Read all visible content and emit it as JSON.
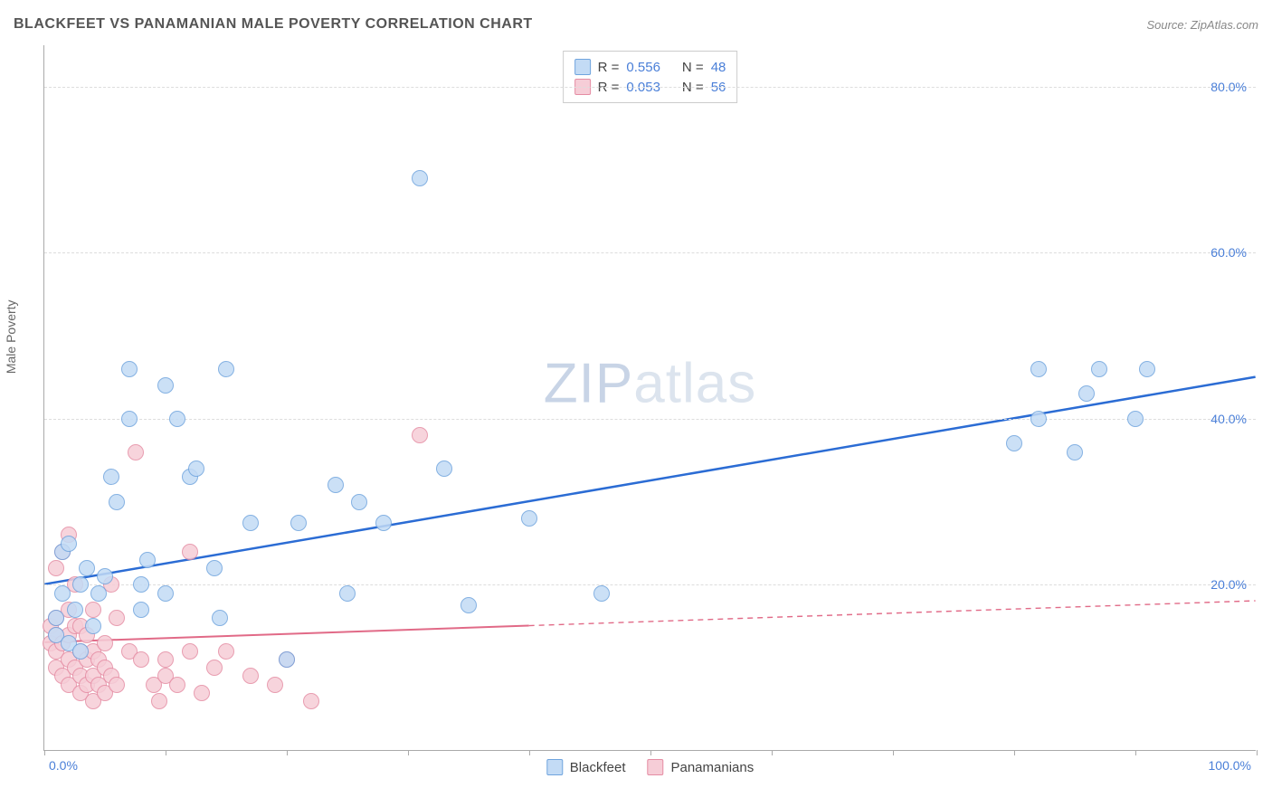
{
  "title": "BLACKFEET VS PANAMANIAN MALE POVERTY CORRELATION CHART",
  "source": "Source: ZipAtlas.com",
  "ylabel": "Male Poverty",
  "watermark_zip": "ZIP",
  "watermark_atlas": "atlas",
  "chart": {
    "type": "scatter",
    "xlim": [
      0,
      100
    ],
    "ylim": [
      0,
      85
    ],
    "yticks": [
      20,
      40,
      60,
      80
    ],
    "ytick_labels": [
      "20.0%",
      "40.0%",
      "60.0%",
      "80.0%"
    ],
    "xticks": [
      0,
      10,
      20,
      30,
      40,
      50,
      60,
      70,
      80,
      90,
      100
    ],
    "xaxis_left": "0.0%",
    "xaxis_right": "100.0%",
    "background_color": "#ffffff",
    "grid_color": "#dddddd",
    "axis_color": "#aaaaaa",
    "marker_radius": 9,
    "marker_stroke_width": 1.2,
    "series": [
      {
        "name": "Blackfeet",
        "fill": "#c3dbf5",
        "stroke": "#6fa4de",
        "trend_color": "#2b6cd4",
        "trend_width": 2.5,
        "trend": {
          "x1": 0,
          "y1": 20,
          "x2": 100,
          "y2": 45,
          "dash_from_x": null
        },
        "R_label": "R =",
        "R": "0.556",
        "N_label": "N =",
        "N": "48",
        "points": [
          [
            1,
            16
          ],
          [
            1,
            14
          ],
          [
            1.5,
            19
          ],
          [
            1.5,
            24
          ],
          [
            2,
            13
          ],
          [
            2,
            25
          ],
          [
            2.5,
            17
          ],
          [
            3,
            12
          ],
          [
            3,
            20
          ],
          [
            3.5,
            22
          ],
          [
            4,
            15
          ],
          [
            4.5,
            19
          ],
          [
            5,
            21
          ],
          [
            5.5,
            33
          ],
          [
            6,
            30
          ],
          [
            7,
            46
          ],
          [
            7,
            40
          ],
          [
            8,
            17
          ],
          [
            8,
            20
          ],
          [
            8.5,
            23
          ],
          [
            10,
            44
          ],
          [
            10,
            19
          ],
          [
            11,
            40
          ],
          [
            12,
            33
          ],
          [
            12.5,
            34
          ],
          [
            14,
            22
          ],
          [
            14.5,
            16
          ],
          [
            15,
            46
          ],
          [
            17,
            27.5
          ],
          [
            20,
            11
          ],
          [
            21,
            27.5
          ],
          [
            24,
            32
          ],
          [
            25,
            19
          ],
          [
            26,
            30
          ],
          [
            28,
            27.5
          ],
          [
            31,
            69
          ],
          [
            33,
            34
          ],
          [
            35,
            17.5
          ],
          [
            40,
            28
          ],
          [
            46,
            19
          ],
          [
            80,
            37
          ],
          [
            82,
            40
          ],
          [
            82,
            46
          ],
          [
            85,
            36
          ],
          [
            86,
            43
          ],
          [
            87,
            46
          ],
          [
            90,
            40
          ],
          [
            91,
            46
          ]
        ]
      },
      {
        "name": "Panamanians",
        "fill": "#f6cdd7",
        "stroke": "#e58ca3",
        "trend_color": "#e16a87",
        "trend_width": 2,
        "trend": {
          "x1": 0,
          "y1": 13,
          "x2": 100,
          "y2": 18,
          "dash_from_x": 40
        },
        "R_label": "R =",
        "R": "0.053",
        "N_label": "N =",
        "N": "56",
        "points": [
          [
            0.5,
            13
          ],
          [
            0.5,
            15
          ],
          [
            1,
            10
          ],
          [
            1,
            12
          ],
          [
            1,
            14
          ],
          [
            1,
            16
          ],
          [
            1,
            22
          ],
          [
            1.5,
            9
          ],
          [
            1.5,
            13
          ],
          [
            1.5,
            24
          ],
          [
            2,
            8
          ],
          [
            2,
            11
          ],
          [
            2,
            14
          ],
          [
            2,
            17
          ],
          [
            2,
            26
          ],
          [
            2.5,
            10
          ],
          [
            2.5,
            15
          ],
          [
            2.5,
            20
          ],
          [
            3,
            7
          ],
          [
            3,
            9
          ],
          [
            3,
            12
          ],
          [
            3,
            15
          ],
          [
            3.5,
            8
          ],
          [
            3.5,
            11
          ],
          [
            3.5,
            14
          ],
          [
            4,
            6
          ],
          [
            4,
            9
          ],
          [
            4,
            12
          ],
          [
            4,
            17
          ],
          [
            4.5,
            8
          ],
          [
            4.5,
            11
          ],
          [
            5,
            7
          ],
          [
            5,
            10
          ],
          [
            5,
            13
          ],
          [
            5.5,
            9
          ],
          [
            5.5,
            20
          ],
          [
            6,
            8
          ],
          [
            6,
            16
          ],
          [
            7,
            12
          ],
          [
            7.5,
            36
          ],
          [
            8,
            11
          ],
          [
            9,
            8
          ],
          [
            9.5,
            6
          ],
          [
            10,
            9
          ],
          [
            10,
            11
          ],
          [
            11,
            8
          ],
          [
            12,
            12
          ],
          [
            12,
            24
          ],
          [
            13,
            7
          ],
          [
            14,
            10
          ],
          [
            15,
            12
          ],
          [
            17,
            9
          ],
          [
            19,
            8
          ],
          [
            20,
            11
          ],
          [
            22,
            6
          ],
          [
            31,
            38
          ]
        ]
      }
    ]
  },
  "legend": {
    "series1": "Blackfeet",
    "series2": "Panamanians"
  }
}
